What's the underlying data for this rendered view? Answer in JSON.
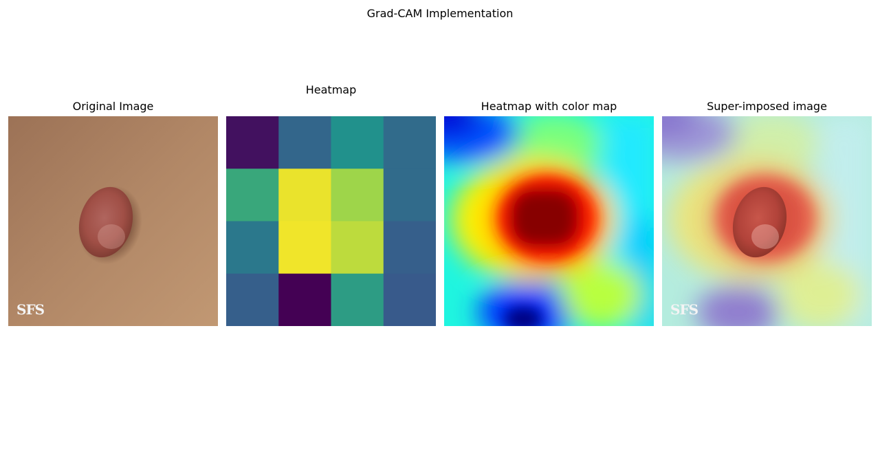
{
  "figure": {
    "title": "Grad-CAM Implementation"
  },
  "panels": [
    {
      "title": "Original Image"
    },
    {
      "title": "Heatmap"
    },
    {
      "title": "Heatmap with color map"
    },
    {
      "title": "Super-imposed image"
    }
  ],
  "watermark": "SFS",
  "chart_data": {
    "type": "heatmap",
    "colormap": "viridis",
    "rows": 4,
    "cols": 4,
    "values": [
      [
        0.05,
        0.33,
        0.5,
        0.35
      ],
      [
        0.6,
        0.97,
        0.85,
        0.35
      ],
      [
        0.4,
        0.98,
        0.9,
        0.3
      ],
      [
        0.3,
        0.0,
        0.55,
        0.28
      ]
    ],
    "colors": {
      "viridis_stops": [
        "#440154",
        "#3b528b",
        "#21918c",
        "#5ec962",
        "#fde725"
      ]
    }
  }
}
